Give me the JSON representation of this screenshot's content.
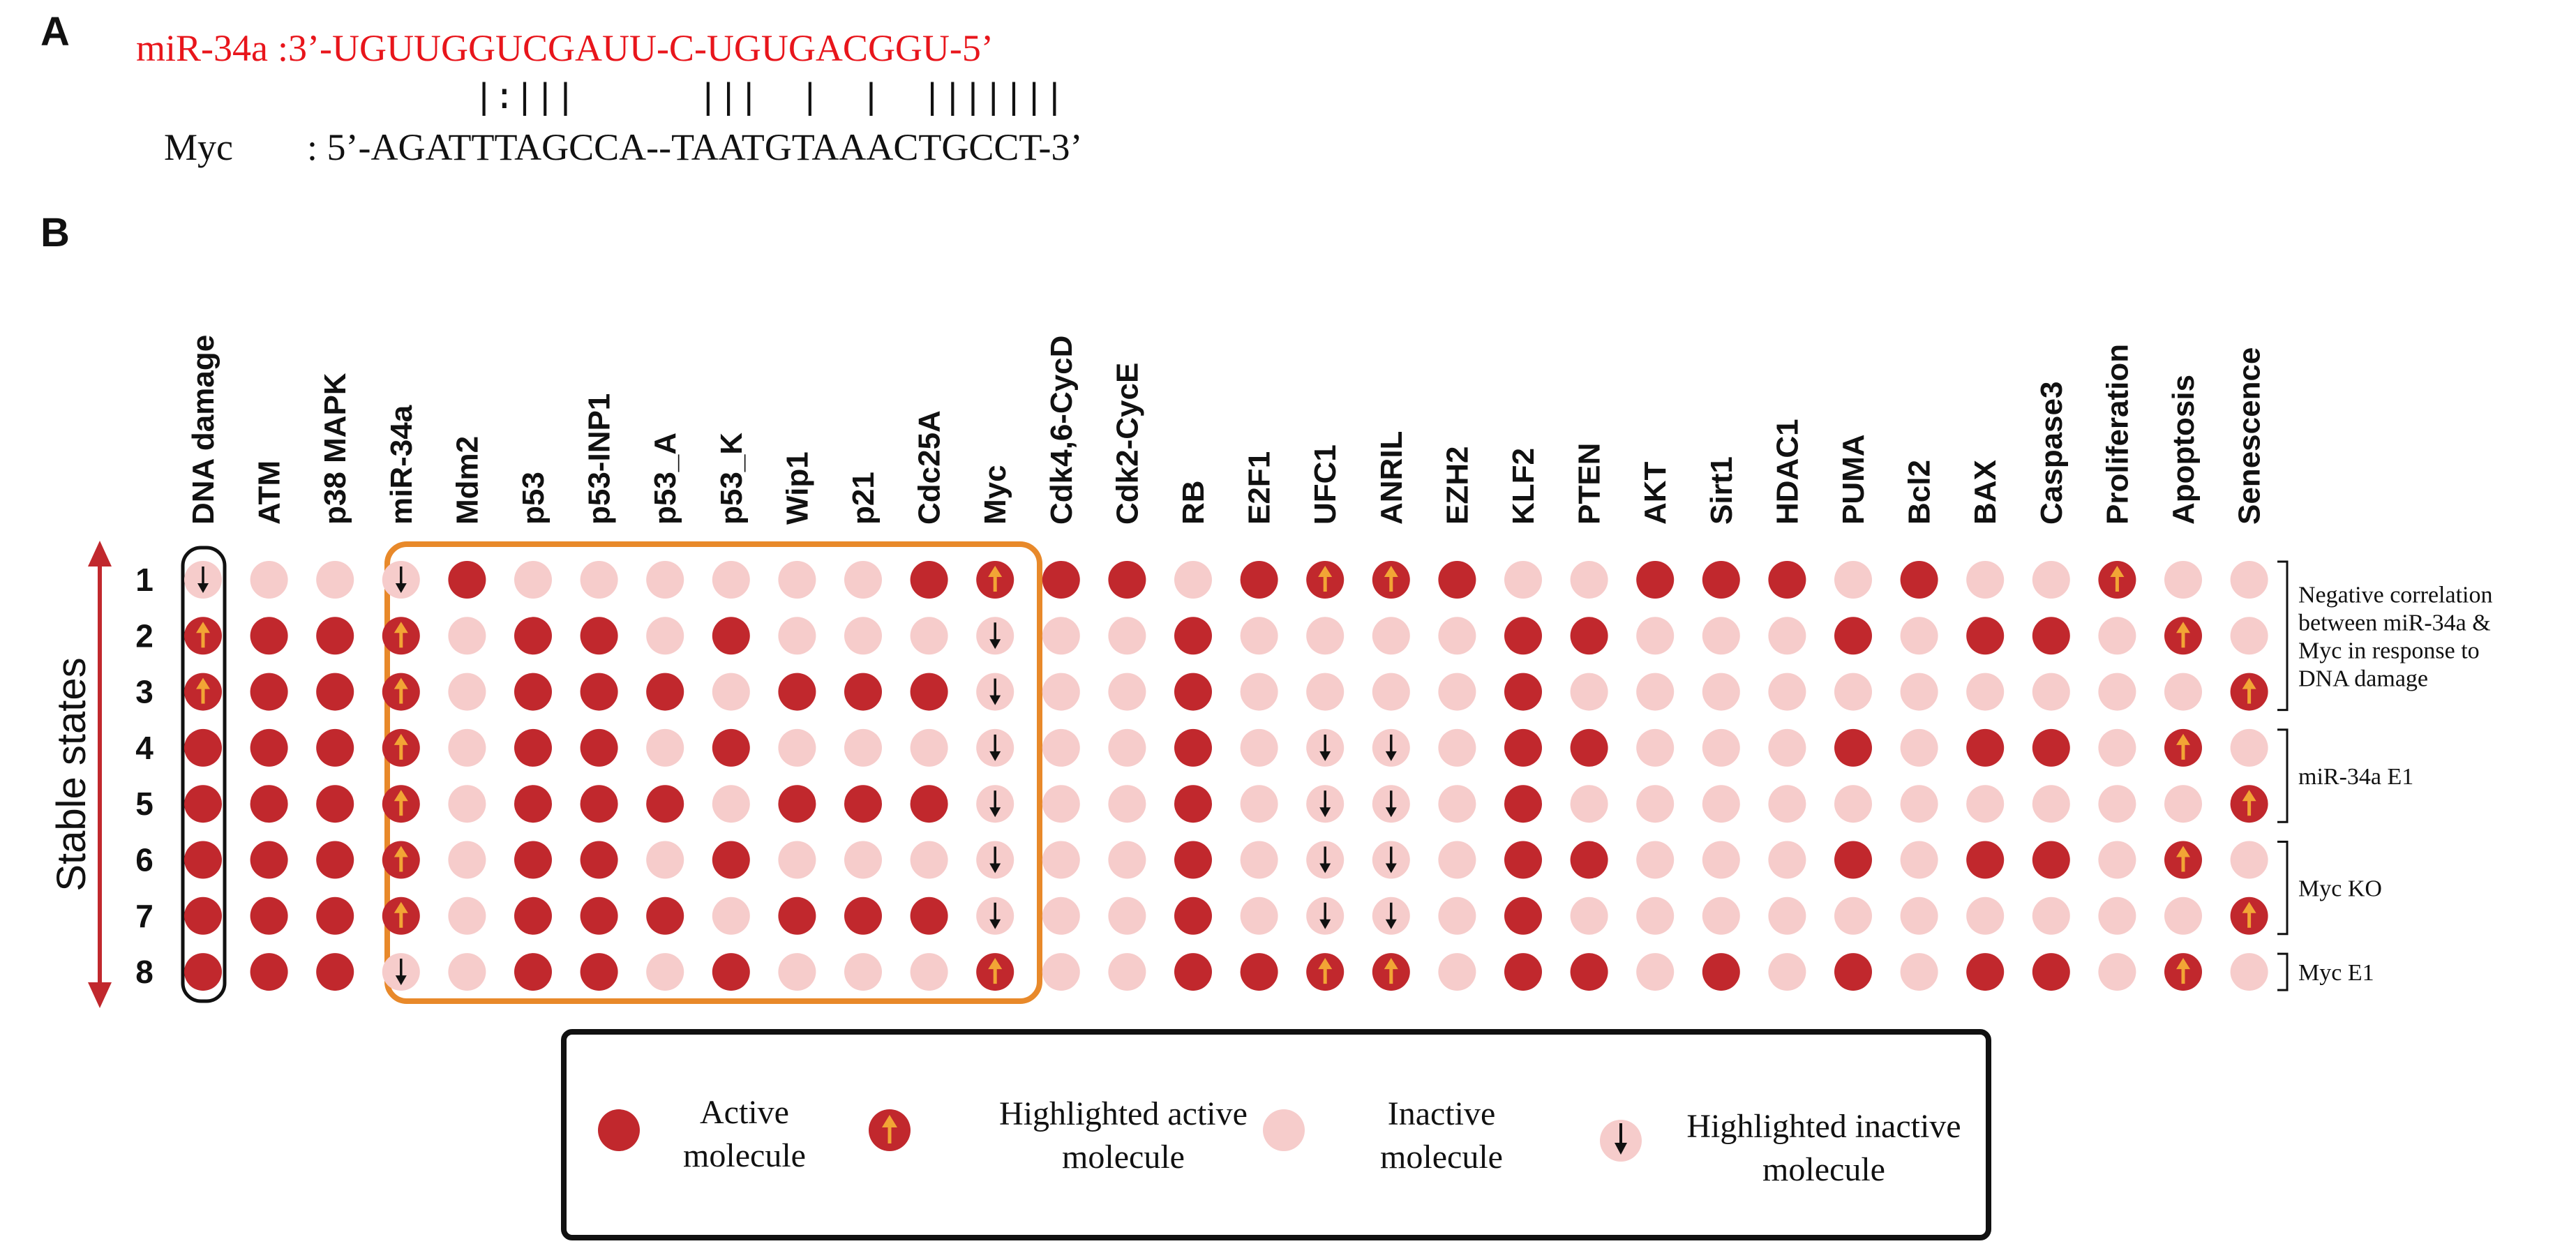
{
  "panel_a": {
    "label": "A",
    "mirna_name": "miR-34a",
    "mirna_seq": ":3’-UGUUGGUCGAUU-C-UGUGACGGU-5’",
    "target_name": "Myc",
    "target_seq": ": 5’-AGATTTAGCCA--TAATGTAAACTGCCT-3’",
    "pair_marks": "|:|||      |||  |  |  |||||||",
    "colors": {
      "mirna": "#e8151b",
      "target": "#111111"
    }
  },
  "panel_b": {
    "label": "B",
    "y_axis_label": "Stable states",
    "columns": [
      "DNA damage",
      "ATM",
      "p38 MAPK",
      "miR-34a",
      "Mdm2",
      "p53",
      "p53-INP1",
      "p53_A",
      "p53_K",
      "Wip1",
      "p21",
      "Cdc25A",
      "Myc",
      "Cdk4,6-CycD",
      "Cdk2-CycE",
      "RB",
      "E2F1",
      "UFC1",
      "ANRIL",
      "EZH2",
      "KLF2",
      "PTEN",
      "AKT",
      "Sirt1",
      "HDAC1",
      "PUMA",
      "Bcl2",
      "BAX",
      "Caspase3",
      "Proliferation",
      "Apoptosis",
      "Senescence"
    ],
    "row_labels": [
      "1",
      "2",
      "3",
      "4",
      "5",
      "6",
      "7",
      "8"
    ],
    "state_codes": "0 = inactive, 1 = active, U = highlighted active, D = highlighted inactive",
    "states": [
      [
        "D",
        "0",
        "0",
        "D",
        "1",
        "0",
        "0",
        "0",
        "0",
        "0",
        "0",
        "1",
        "U",
        "1",
        "1",
        "0",
        "1",
        "U",
        "U",
        "1",
        "0",
        "0",
        "1",
        "1",
        "1",
        "0",
        "1",
        "0",
        "0",
        "U",
        "0",
        "0"
      ],
      [
        "U",
        "1",
        "1",
        "U",
        "0",
        "1",
        "1",
        "0",
        "1",
        "0",
        "0",
        "0",
        "D",
        "0",
        "0",
        "1",
        "0",
        "0",
        "0",
        "0",
        "1",
        "1",
        "0",
        "0",
        "0",
        "1",
        "0",
        "1",
        "1",
        "0",
        "U",
        "0"
      ],
      [
        "U",
        "1",
        "1",
        "U",
        "0",
        "1",
        "1",
        "1",
        "0",
        "1",
        "1",
        "1",
        "D",
        "0",
        "0",
        "1",
        "0",
        "0",
        "0",
        "0",
        "1",
        "0",
        "0",
        "0",
        "0",
        "0",
        "0",
        "0",
        "0",
        "0",
        "0",
        "U"
      ],
      [
        "1",
        "1",
        "1",
        "U",
        "0",
        "1",
        "1",
        "0",
        "1",
        "0",
        "0",
        "0",
        "D",
        "0",
        "0",
        "1",
        "0",
        "D",
        "D",
        "0",
        "1",
        "1",
        "0",
        "0",
        "0",
        "1",
        "0",
        "1",
        "1",
        "0",
        "U",
        "0"
      ],
      [
        "1",
        "1",
        "1",
        "U",
        "0",
        "1",
        "1",
        "1",
        "0",
        "1",
        "1",
        "1",
        "D",
        "0",
        "0",
        "1",
        "0",
        "D",
        "D",
        "0",
        "1",
        "0",
        "0",
        "0",
        "0",
        "0",
        "0",
        "0",
        "0",
        "0",
        "0",
        "U"
      ],
      [
        "1",
        "1",
        "1",
        "U",
        "0",
        "1",
        "1",
        "0",
        "1",
        "0",
        "0",
        "0",
        "D",
        "0",
        "0",
        "1",
        "0",
        "D",
        "D",
        "0",
        "1",
        "1",
        "0",
        "0",
        "0",
        "1",
        "0",
        "1",
        "1",
        "0",
        "U",
        "0"
      ],
      [
        "1",
        "1",
        "1",
        "U",
        "0",
        "1",
        "1",
        "1",
        "0",
        "1",
        "1",
        "1",
        "D",
        "0",
        "0",
        "1",
        "0",
        "D",
        "D",
        "0",
        "1",
        "0",
        "0",
        "0",
        "0",
        "0",
        "0",
        "0",
        "0",
        "0",
        "0",
        "U"
      ],
      [
        "1",
        "1",
        "1",
        "D",
        "0",
        "1",
        "1",
        "0",
        "1",
        "0",
        "0",
        "0",
        "U",
        "0",
        "0",
        "1",
        "1",
        "U",
        "U",
        "0",
        "1",
        "1",
        "0",
        "1",
        "0",
        "1",
        "0",
        "1",
        "1",
        "0",
        "U",
        "0"
      ]
    ],
    "side_notes": [
      {
        "rows": [
          1,
          3
        ],
        "lines": [
          "Negative correlation",
          "between miR-34a &",
          "Myc in response to",
          "DNA damage"
        ]
      },
      {
        "rows": [
          4,
          5
        ],
        "lines": [
          "miR-34a E1"
        ]
      },
      {
        "rows": [
          6,
          7
        ],
        "lines": [
          "Myc KO"
        ]
      },
      {
        "rows": [
          8,
          8
        ],
        "lines": [
          "Myc E1"
        ]
      }
    ],
    "colors": {
      "active": "#c1282d",
      "inactive": "#f6cccb",
      "arrow_up": "#f2a535",
      "arrow_down": "#111111",
      "orange_box": "#e8892a",
      "axis_arrow": "#c1282d"
    }
  },
  "legend": {
    "items": [
      {
        "icon": "active-molecule-icon",
        "lines": [
          "Active",
          "molecule"
        ]
      },
      {
        "icon": "highlighted-active-molecule-icon",
        "lines": [
          "Highlighted active",
          "molecule"
        ]
      },
      {
        "icon": "inactive-molecule-icon",
        "lines": [
          "Inactive",
          "molecule"
        ]
      },
      {
        "icon": "highlighted-inactive-molecule-icon",
        "lines": [
          "Highlighted inactive",
          "molecule"
        ]
      }
    ]
  }
}
